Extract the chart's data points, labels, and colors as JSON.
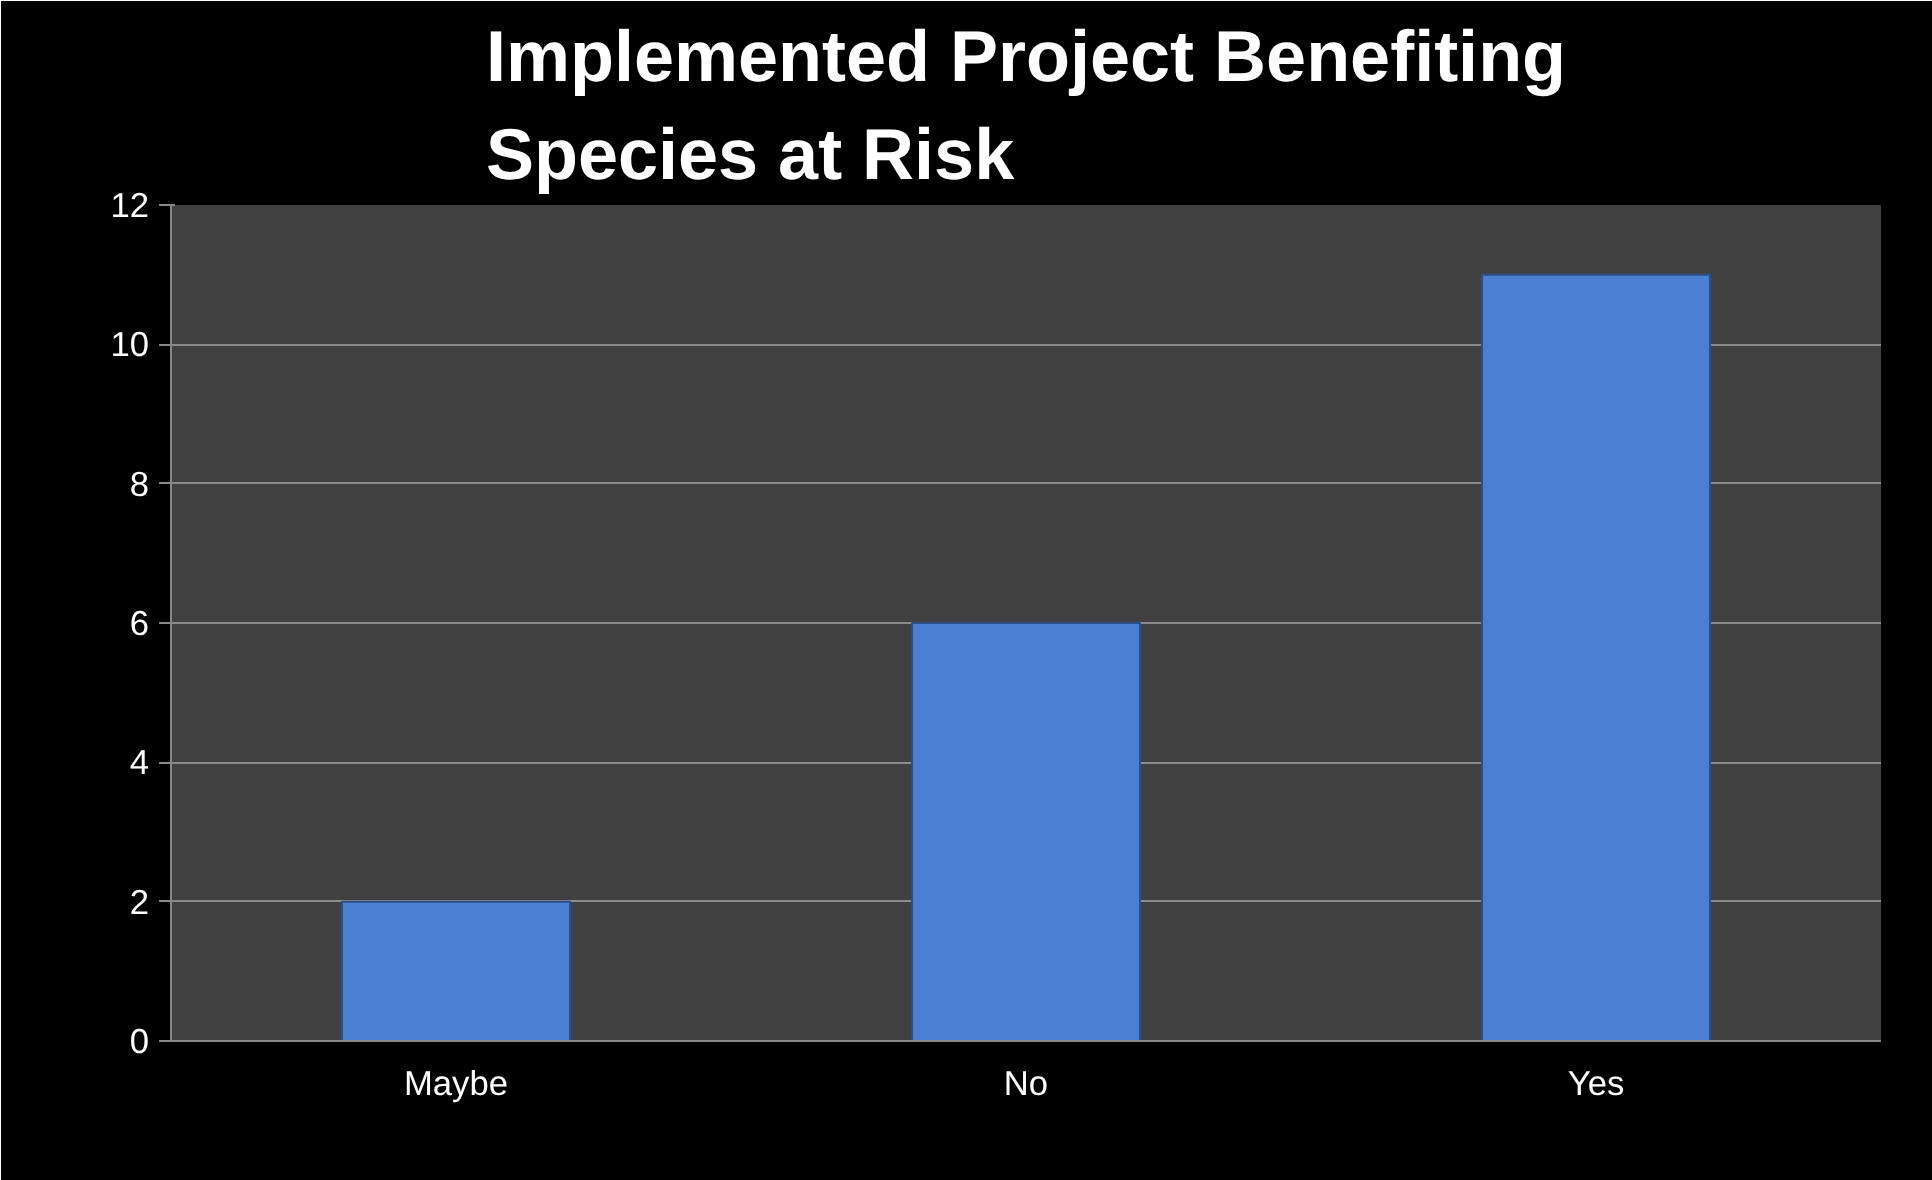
{
  "chart_data": {
    "type": "bar",
    "title": "Implemented Project Benefiting Species at Risk",
    "categories": [
      "Maybe",
      "No",
      "Yes"
    ],
    "values": [
      2,
      6,
      11
    ],
    "color": "#4a80d4",
    "ylim": [
      0,
      12
    ],
    "yticks": [
      0,
      2,
      4,
      6,
      8,
      10,
      12
    ],
    "grid": "y"
  }
}
